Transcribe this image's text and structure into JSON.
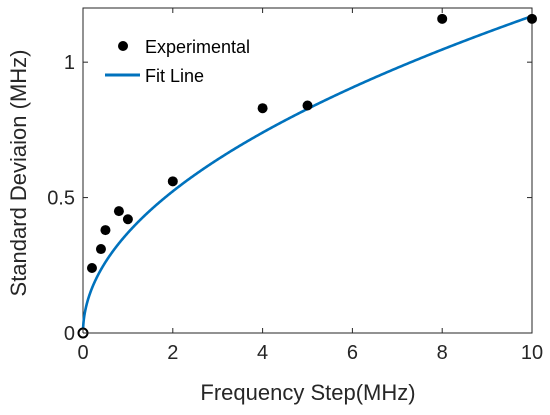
{
  "chart_data": {
    "type": "scatter",
    "title": "",
    "xlabel": "Frequency Step(MHz)",
    "ylabel": "Standard Deviaion (MHz)",
    "xlim": [
      0,
      10
    ],
    "ylim": [
      0,
      1.2
    ],
    "xticks": [
      0,
      2,
      4,
      6,
      8,
      10
    ],
    "yticks": [
      0,
      0.5,
      1
    ],
    "xtick_labels": [
      "0",
      "2",
      "4",
      "6",
      "8",
      "10"
    ],
    "ytick_labels": [
      "0",
      "0.5",
      "1"
    ],
    "grid": false,
    "legend_position": "top-left",
    "series": [
      {
        "name": "Experimental",
        "kind": "scatter",
        "color": "#000000",
        "x": [
          0,
          0.2,
          0.4,
          0.5,
          0.8,
          1,
          2,
          4,
          5,
          8,
          10
        ],
        "y": [
          0,
          0.24,
          0.31,
          0.38,
          0.45,
          0.42,
          0.56,
          0.83,
          0.84,
          1.16,
          1.16
        ]
      },
      {
        "name": "Fit Line",
        "kind": "line",
        "color": "#0072BD",
        "formula": "0.37*x^0.5"
      }
    ]
  }
}
